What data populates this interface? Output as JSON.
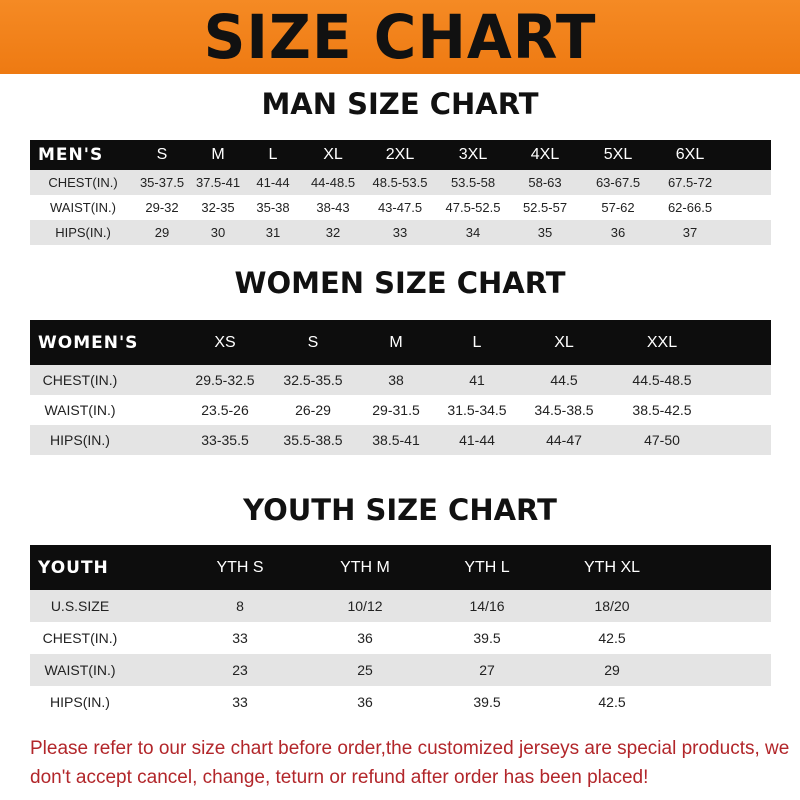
{
  "banner_title": "SIZE CHART",
  "men": {
    "title": "MAN SIZE CHART",
    "header": "MEN'S",
    "sizes": [
      "S",
      "M",
      "L",
      "XL",
      "2XL",
      "3XL",
      "4XL",
      "5XL",
      "6XL"
    ],
    "rows": [
      {
        "label": "CHEST(IN.)",
        "values": [
          "35-37.5",
          "37.5-41",
          "41-44",
          "44-48.5",
          "48.5-53.5",
          "53.5-58",
          "58-63",
          "63-67.5",
          "67.5-72"
        ]
      },
      {
        "label": "WAIST(IN.)",
        "values": [
          "29-32",
          "32-35",
          "35-38",
          "38-43",
          "43-47.5",
          "47.5-52.5",
          "52.5-57",
          "57-62",
          "62-66.5"
        ]
      },
      {
        "label": "HIPS(IN.)",
        "values": [
          "29",
          "30",
          "31",
          "32",
          "33",
          "34",
          "35",
          "36",
          "37"
        ]
      }
    ]
  },
  "women": {
    "title": "WOMEN SIZE CHART",
    "header": "WOMEN'S",
    "sizes": [
      "XS",
      "S",
      "M",
      "L",
      "XL",
      "XXL"
    ],
    "rows": [
      {
        "label": "CHEST(IN.)",
        "values": [
          "29.5-32.5",
          "32.5-35.5",
          "38",
          "41",
          "44.5",
          "44.5-48.5"
        ]
      },
      {
        "label": "WAIST(IN.)",
        "values": [
          "23.5-26",
          "26-29",
          "29-31.5",
          "31.5-34.5",
          "34.5-38.5",
          "38.5-42.5"
        ]
      },
      {
        "label": "HIPS(IN.)",
        "values": [
          "33-35.5",
          "35.5-38.5",
          "38.5-41",
          "41-44",
          "44-47",
          "47-50"
        ]
      }
    ]
  },
  "youth": {
    "title": "YOUTH SIZE CHART",
    "header": "YOUTH",
    "sizes": [
      "YTH S",
      "YTH M",
      "YTH L",
      "YTH XL"
    ],
    "rows": [
      {
        "label": "U.S.SIZE",
        "values": [
          "8",
          "10/12",
          "14/16",
          "18/20"
        ]
      },
      {
        "label": "CHEST(IN.)",
        "values": [
          "33",
          "36",
          "39.5",
          "42.5"
        ]
      },
      {
        "label": "WAIST(IN.)",
        "values": [
          "23",
          "25",
          "27",
          "29"
        ]
      },
      {
        "label": "HIPS(IN.)",
        "values": [
          "33",
          "36",
          "39.5",
          "42.5"
        ]
      }
    ]
  },
  "notice": "Please refer to our size chart before order,the customized jerseys are special products, we don't accept cancel, change, teturn or refund after order has been placed!",
  "colors": {
    "banner": "#f07f1a",
    "header_row": "#0d0d0d",
    "shaded_row": "#e4e4e4",
    "notice": "#b2262a"
  }
}
